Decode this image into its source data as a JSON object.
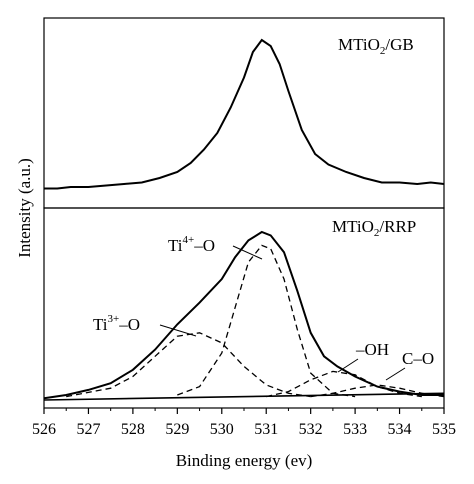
{
  "chart_data": [
    {
      "type": "line",
      "panel": "top",
      "label_main": "MTiO",
      "label_sub": "2",
      "label_rest": "/GB",
      "xlim": [
        526,
        535
      ],
      "ylim": [
        0,
        1
      ],
      "series": [
        {
          "x": [
            526.0,
            526.3,
            526.6,
            527.0,
            527.4,
            527.8,
            528.2,
            528.6,
            529.0,
            529.3,
            529.6,
            529.9,
            530.2,
            530.5,
            530.7,
            530.9,
            531.1,
            531.3,
            531.5,
            531.8,
            532.1,
            532.4,
            532.8,
            533.2,
            533.6,
            534.0,
            534.4,
            534.7,
            535.0
          ],
          "values": [
            0.01,
            0.01,
            0.02,
            0.02,
            0.03,
            0.04,
            0.05,
            0.08,
            0.12,
            0.18,
            0.27,
            0.38,
            0.55,
            0.75,
            0.92,
            1.0,
            0.96,
            0.84,
            0.66,
            0.4,
            0.24,
            0.17,
            0.12,
            0.08,
            0.05,
            0.05,
            0.04,
            0.05,
            0.04
          ],
          "color": "#000000"
        }
      ]
    },
    {
      "type": "line",
      "panel": "bottom",
      "label_main": "MTiO",
      "label_sub": "2",
      "label_rest": "/RRP",
      "xlim": [
        526,
        535
      ],
      "ylim": [
        0,
        1
      ],
      "xlabel": "Binding energy (ev)",
      "ylabel": "Intensity (a.u.)",
      "xticks": [
        "526",
        "527",
        "528",
        "529",
        "530",
        "531",
        "532",
        "533",
        "534",
        "535"
      ],
      "annotations": [
        {
          "base": "Ti",
          "sup": "4+",
          "rest": "–O"
        },
        {
          "base": "Ti",
          "sup": "3+",
          "rest": "–O"
        },
        {
          "base": "–OH"
        },
        {
          "base": "C–O"
        }
      ],
      "series": [
        {
          "style": "solid",
          "x": [
            526.0,
            526.5,
            527.0,
            527.5,
            528.0,
            528.5,
            529.0,
            529.5,
            530.0,
            530.3,
            530.6,
            530.9,
            531.1,
            531.4,
            531.7,
            532.0,
            532.3,
            532.6,
            533.0,
            533.5,
            534.0,
            534.5,
            535.0
          ],
          "values": [
            0.01,
            0.03,
            0.06,
            0.1,
            0.18,
            0.3,
            0.45,
            0.58,
            0.72,
            0.85,
            0.95,
            1.0,
            0.98,
            0.88,
            0.65,
            0.4,
            0.26,
            0.2,
            0.14,
            0.08,
            0.05,
            0.03,
            0.03
          ]
        },
        {
          "style": "dashed",
          "name": "Ti4+–O",
          "x": [
            529.0,
            529.5,
            530.0,
            530.3,
            530.6,
            530.9,
            531.1,
            531.4,
            531.7,
            532.0,
            532.5,
            533.0
          ],
          "values": [
            0.03,
            0.08,
            0.28,
            0.55,
            0.82,
            0.92,
            0.9,
            0.72,
            0.42,
            0.16,
            0.04,
            0.02
          ]
        },
        {
          "style": "dashed",
          "name": "Ti3+–O",
          "x": [
            526.5,
            527.5,
            528.0,
            528.5,
            529.0,
            529.5,
            530.0,
            530.5,
            531.0,
            531.5,
            532.0
          ],
          "values": [
            0.02,
            0.07,
            0.14,
            0.26,
            0.38,
            0.4,
            0.34,
            0.2,
            0.09,
            0.04,
            0.02
          ]
        },
        {
          "style": "dashed",
          "name": "–OH",
          "x": [
            531.0,
            531.5,
            532.0,
            532.5,
            533.0,
            533.5,
            534.0,
            534.5
          ],
          "values": [
            0.02,
            0.05,
            0.12,
            0.17,
            0.15,
            0.08,
            0.04,
            0.02
          ]
        },
        {
          "style": "dashed",
          "name": "C–O",
          "x": [
            532.0,
            532.5,
            533.0,
            533.5,
            534.0,
            534.5,
            535.0
          ],
          "values": [
            0.02,
            0.04,
            0.07,
            0.09,
            0.07,
            0.04,
            0.02
          ]
        },
        {
          "style": "solid",
          "name": "baseline",
          "x": [
            526.0,
            535.0
          ],
          "values": [
            0.0,
            0.04
          ]
        }
      ]
    }
  ]
}
